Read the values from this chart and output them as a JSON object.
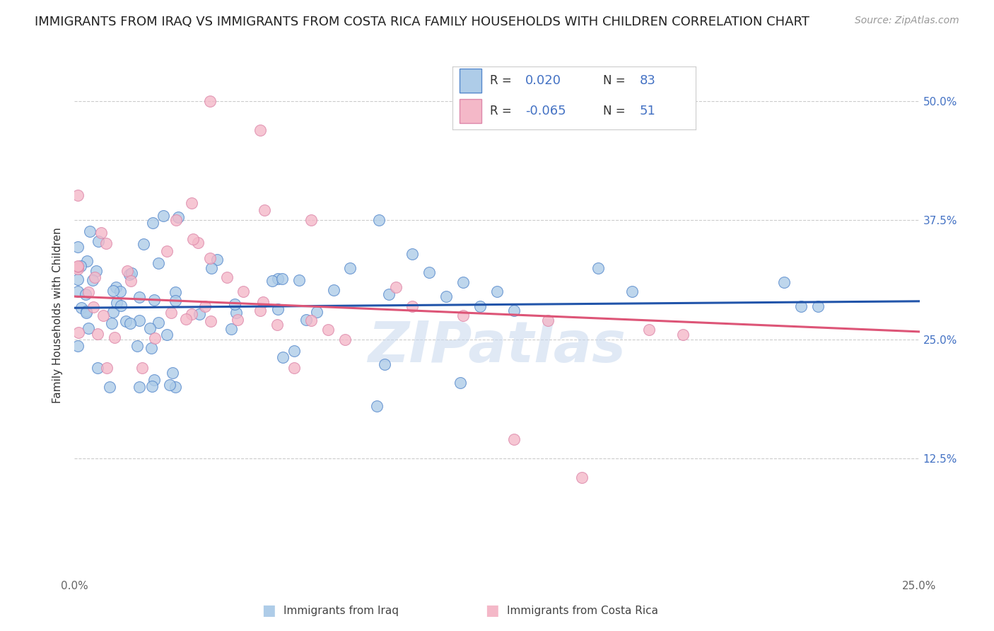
{
  "title": "IMMIGRANTS FROM IRAQ VS IMMIGRANTS FROM COSTA RICA FAMILY HOUSEHOLDS WITH CHILDREN CORRELATION CHART",
  "source": "Source: ZipAtlas.com",
  "ylabel": "Family Households with Children",
  "ytick_values": [
    0.0,
    0.125,
    0.25,
    0.375,
    0.5
  ],
  "ytick_labels_right": [
    "",
    "12.5%",
    "25.0%",
    "37.5%",
    "50.0%"
  ],
  "xlim": [
    0.0,
    0.25
  ],
  "ylim": [
    0.0,
    0.55
  ],
  "iraq_R": 0.02,
  "iraq_N": 83,
  "costarica_R": -0.065,
  "costarica_N": 51,
  "iraq_color": "#aecce8",
  "iraq_edge_color": "#5588cc",
  "iraq_line_color": "#2255aa",
  "costarica_color": "#f4b8c8",
  "costarica_edge_color": "#dd88aa",
  "costarica_line_color": "#dd5577",
  "background_color": "#ffffff",
  "grid_color": "#cccccc",
  "watermark": "ZIPatlas",
  "watermark_color": "#c8d8ee",
  "title_fontsize": 13,
  "source_fontsize": 10,
  "axis_label_fontsize": 11,
  "tick_fontsize": 11,
  "legend_fontsize": 13,
  "iraq_line_y0": 0.283,
  "iraq_line_y1": 0.29,
  "cr_line_y0": 0.295,
  "cr_line_y1": 0.258
}
